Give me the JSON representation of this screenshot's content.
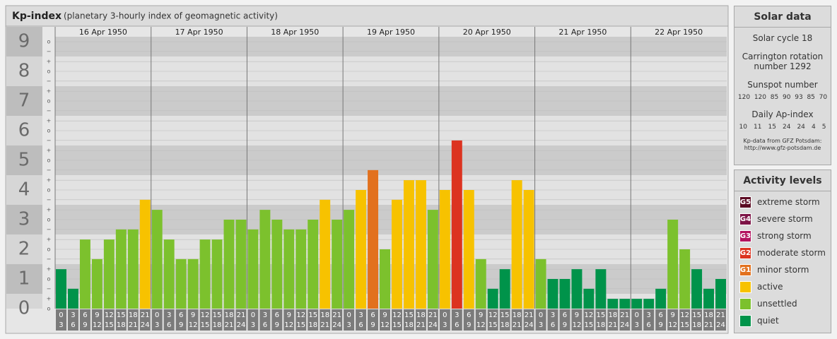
{
  "chart_data": {
    "type": "bar",
    "title": "Kp-index",
    "subtitle": "(planetary 3-hourly index of geomagnetic activity)",
    "days": [
      "16 Apr 1950",
      "17 Apr 1950",
      "18 Apr 1950",
      "19 Apr 1950",
      "20 Apr 1950",
      "21 Apr 1950",
      "22 Apr 1950"
    ],
    "intervals": [
      [
        "0",
        "3"
      ],
      [
        "3",
        "6"
      ],
      [
        "6",
        "9"
      ],
      [
        "9",
        "12"
      ],
      [
        "12",
        "15"
      ],
      [
        "15",
        "18"
      ],
      [
        "18",
        "21"
      ],
      [
        "21",
        "24"
      ]
    ],
    "values": [
      1.33,
      0.67,
      2.33,
      1.67,
      2.33,
      2.67,
      2.67,
      3.67,
      3.33,
      2.33,
      1.67,
      1.67,
      2.33,
      2.33,
      3,
      3,
      2.67,
      3.33,
      3,
      2.67,
      2.67,
      3,
      3.67,
      3,
      3.33,
      4,
      4.67,
      2,
      3.67,
      4.33,
      4.33,
      3.33,
      4,
      5.67,
      4,
      1.67,
      0.67,
      1.33,
      4.33,
      4,
      1.67,
      1,
      1,
      1.33,
      0.67,
      1.33,
      0.33,
      0.33,
      0.33,
      0.33,
      0.67,
      3,
      2,
      1.33,
      0.67,
      1
    ],
    "colors": [
      "#00934a",
      "#00934a",
      "#7cc12d",
      "#7cc12d",
      "#7cc12d",
      "#7cc12d",
      "#7cc12d",
      "#f7c200",
      "#7cc12d",
      "#7cc12d",
      "#7cc12d",
      "#7cc12d",
      "#7cc12d",
      "#7cc12d",
      "#7cc12d",
      "#7cc12d",
      "#7cc12d",
      "#7cc12d",
      "#7cc12d",
      "#7cc12d",
      "#7cc12d",
      "#7cc12d",
      "#f7c200",
      "#7cc12d",
      "#7cc12d",
      "#f7c200",
      "#e2711e",
      "#7cc12d",
      "#f7c200",
      "#f7c200",
      "#f7c200",
      "#7cc12d",
      "#f7c200",
      "#dc3320",
      "#f7c200",
      "#7cc12d",
      "#00934a",
      "#00934a",
      "#f7c200",
      "#f7c200",
      "#7cc12d",
      "#00934a",
      "#00934a",
      "#00934a",
      "#00934a",
      "#00934a",
      "#00934a",
      "#00934a",
      "#00934a",
      "#00934a",
      "#00934a",
      "#7cc12d",
      "#7cc12d",
      "#00934a",
      "#00934a",
      "#00934a"
    ],
    "ylim": [
      0,
      9.5
    ],
    "ymajor": [
      0,
      1,
      2,
      3,
      4,
      5,
      6,
      7,
      8,
      9
    ],
    "yticks": [
      {
        "value": 0,
        "label": "o"
      },
      {
        "value": 0.33,
        "label": "+"
      },
      {
        "value": 0.67,
        "label": "−"
      },
      {
        "value": 1,
        "label": "o"
      },
      {
        "value": 1.33,
        "label": "+"
      },
      {
        "value": 1.67,
        "label": "−"
      },
      {
        "value": 2,
        "label": "o"
      },
      {
        "value": 2.33,
        "label": "+"
      },
      {
        "value": 2.67,
        "label": "−"
      },
      {
        "value": 3,
        "label": "o"
      },
      {
        "value": 3.33,
        "label": "+"
      },
      {
        "value": 3.67,
        "label": "−"
      },
      {
        "value": 4,
        "label": "o"
      },
      {
        "value": 4.33,
        "label": "+"
      },
      {
        "value": 4.67,
        "label": "−"
      },
      {
        "value": 5,
        "label": "o"
      },
      {
        "value": 5.33,
        "label": "+"
      },
      {
        "value": 5.67,
        "label": "−"
      },
      {
        "value": 6,
        "label": "o"
      },
      {
        "value": 6.33,
        "label": "+"
      },
      {
        "value": 6.67,
        "label": "−"
      },
      {
        "value": 7,
        "label": "o"
      },
      {
        "value": 7.33,
        "label": "+"
      },
      {
        "value": 7.67,
        "label": "−"
      },
      {
        "value": 8,
        "label": "o"
      },
      {
        "value": 8.33,
        "label": "+"
      },
      {
        "value": 8.67,
        "label": "−"
      },
      {
        "value": 9,
        "label": "o"
      }
    ],
    "grid": true
  },
  "solar": {
    "title": "Solar data",
    "cycle": "Solar cycle 18",
    "carrington": "Carrington rotation number 1292",
    "sunspot_label": "Sunspot number",
    "sunspots": [
      120,
      120,
      85,
      90,
      93,
      85,
      70
    ],
    "ap_label": "Daily Ap-index",
    "ap": [
      10,
      11,
      15,
      24,
      24,
      4,
      5
    ],
    "source": "Kp-data from GFZ Potsdam:",
    "url": "http://www.gfz-potsdam.de"
  },
  "levels": {
    "title": "Activity levels",
    "items": [
      {
        "code": "G5",
        "name": "extreme storm",
        "color": "#5b0a22"
      },
      {
        "code": "G4",
        "name": "severe storm",
        "color": "#7d1346"
      },
      {
        "code": "G3",
        "name": "strong storm",
        "color": "#b3125e"
      },
      {
        "code": "G2",
        "name": "moderate storm",
        "color": "#dc3320"
      },
      {
        "code": "G1",
        "name": "minor storm",
        "color": "#e2711e"
      },
      {
        "name": "active",
        "color": "#f7c200"
      },
      {
        "name": "unsettled",
        "color": "#7cc12d"
      },
      {
        "name": "quiet",
        "color": "#00934a"
      }
    ]
  }
}
